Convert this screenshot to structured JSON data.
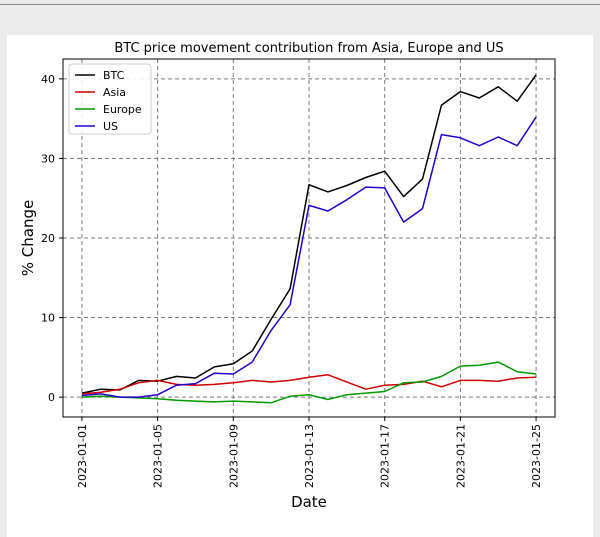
{
  "chart_data": {
    "type": "line",
    "title": "BTC price movement contribution from Asia, Europe and US",
    "xlabel": "Date",
    "ylabel": "% Change",
    "xlim": [
      "2022-12-31",
      "2023-01-26"
    ],
    "ylim": [
      -2.5,
      42.5
    ],
    "grid": true,
    "legend": "top-left",
    "x_ticks": [
      "2023-01-01",
      "2023-01-05",
      "2023-01-09",
      "2023-01-13",
      "2023-01-17",
      "2023-01-21",
      "2023-01-25"
    ],
    "y_ticks": [
      0,
      10,
      20,
      30,
      40
    ],
    "x": [
      "2023-01-01",
      "2023-01-02",
      "2023-01-03",
      "2023-01-04",
      "2023-01-05",
      "2023-01-06",
      "2023-01-07",
      "2023-01-08",
      "2023-01-09",
      "2023-01-10",
      "2023-01-11",
      "2023-01-12",
      "2023-01-13",
      "2023-01-14",
      "2023-01-15",
      "2023-01-16",
      "2023-01-17",
      "2023-01-18",
      "2023-01-19",
      "2023-01-20",
      "2023-01-21",
      "2023-01-22",
      "2023-01-23",
      "2023-01-24",
      "2023-01-25"
    ],
    "series": [
      {
        "name": "BTC",
        "color": "#000000",
        "values": [
          0.5,
          1.0,
          0.9,
          2.1,
          2.0,
          2.6,
          2.4,
          3.8,
          4.2,
          5.8,
          9.8,
          13.6,
          26.7,
          25.8,
          26.6,
          27.6,
          28.4,
          25.2,
          27.4,
          36.7,
          38.4,
          37.6,
          39.0,
          37.2,
          40.5
        ]
      },
      {
        "name": "Asia",
        "color": "#cc0000",
        "values": [
          0.4,
          0.6,
          1.0,
          1.8,
          2.1,
          1.6,
          1.5,
          1.6,
          1.8,
          2.1,
          1.9,
          2.1,
          2.5,
          2.8,
          null,
          1.0,
          1.5,
          1.6,
          2.0,
          1.3,
          2.1,
          2.1,
          2.0,
          2.4,
          2.5
        ]
      },
      {
        "name": "Europe",
        "color": "#009900",
        "values": [
          0.0,
          0.1,
          0.0,
          -0.1,
          -0.2,
          -0.4,
          -0.5,
          -0.6,
          -0.5,
          -0.6,
          -0.7,
          0.1,
          0.3,
          -0.3,
          0.3,
          0.5,
          0.7,
          1.8,
          1.9,
          2.6,
          3.9,
          4.0,
          4.4,
          3.2,
          2.9
        ]
      },
      {
        "name": "US",
        "color": "#2200cc",
        "values": [
          0.2,
          0.4,
          0.0,
          0.0,
          0.3,
          1.5,
          1.7,
          3.0,
          2.9,
          4.4,
          8.4,
          11.6,
          24.1,
          23.4,
          24.8,
          26.4,
          26.3,
          22.0,
          23.7,
          33.0,
          32.6,
          31.6,
          32.7,
          31.6,
          35.2
        ]
      }
    ]
  }
}
